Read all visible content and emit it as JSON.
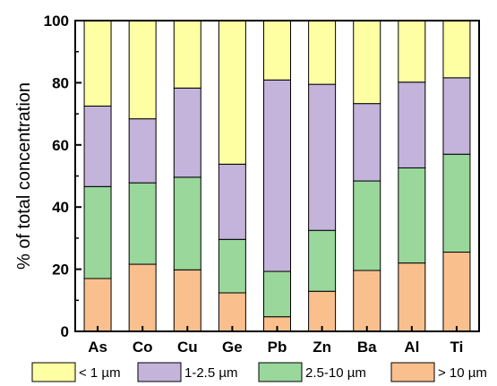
{
  "chart_data": {
    "type": "bar",
    "stacked": true,
    "title": "",
    "xlabel": "",
    "ylabel": "% of total concentration",
    "ylim": [
      0,
      100
    ],
    "yticks": [
      0,
      20,
      40,
      60,
      80,
      100
    ],
    "grid": false,
    "legend_position": "bottom",
    "categories": [
      "As",
      "Co",
      "Cu",
      "Ge",
      "Pb",
      "Zn",
      "Ba",
      "Al",
      "Ti"
    ],
    "series": [
      {
        "name": "> 10 µm",
        "color": "#f9c08e",
        "values": [
          17.0,
          21.6,
          19.8,
          12.4,
          4.7,
          12.9,
          19.6,
          22.0,
          25.5
        ]
      },
      {
        "name": "2.5-10 µm",
        "color": "#99d79a",
        "values": [
          29.6,
          26.2,
          29.8,
          17.2,
          14.6,
          19.6,
          28.8,
          30.6,
          31.5
        ]
      },
      {
        "name": "1-2.5 µm",
        "color": "#c4b3db",
        "values": [
          25.9,
          20.6,
          28.7,
          24.2,
          61.6,
          47.0,
          24.9,
          27.6,
          24.6
        ]
      },
      {
        "name": "< 1 µm",
        "color": "#fefea3",
        "values": [
          27.5,
          31.6,
          21.7,
          46.2,
          19.1,
          20.5,
          26.7,
          19.8,
          18.4
        ]
      }
    ],
    "legend": [
      {
        "label": "< 1 µm",
        "color": "#fefea3"
      },
      {
        "label": "1-2.5 µm",
        "color": "#c4b3db"
      },
      {
        "label": "2.5-10 µm",
        "color": "#99d79a"
      },
      {
        "label": "> 10 µm",
        "color": "#f9c08e"
      }
    ]
  }
}
